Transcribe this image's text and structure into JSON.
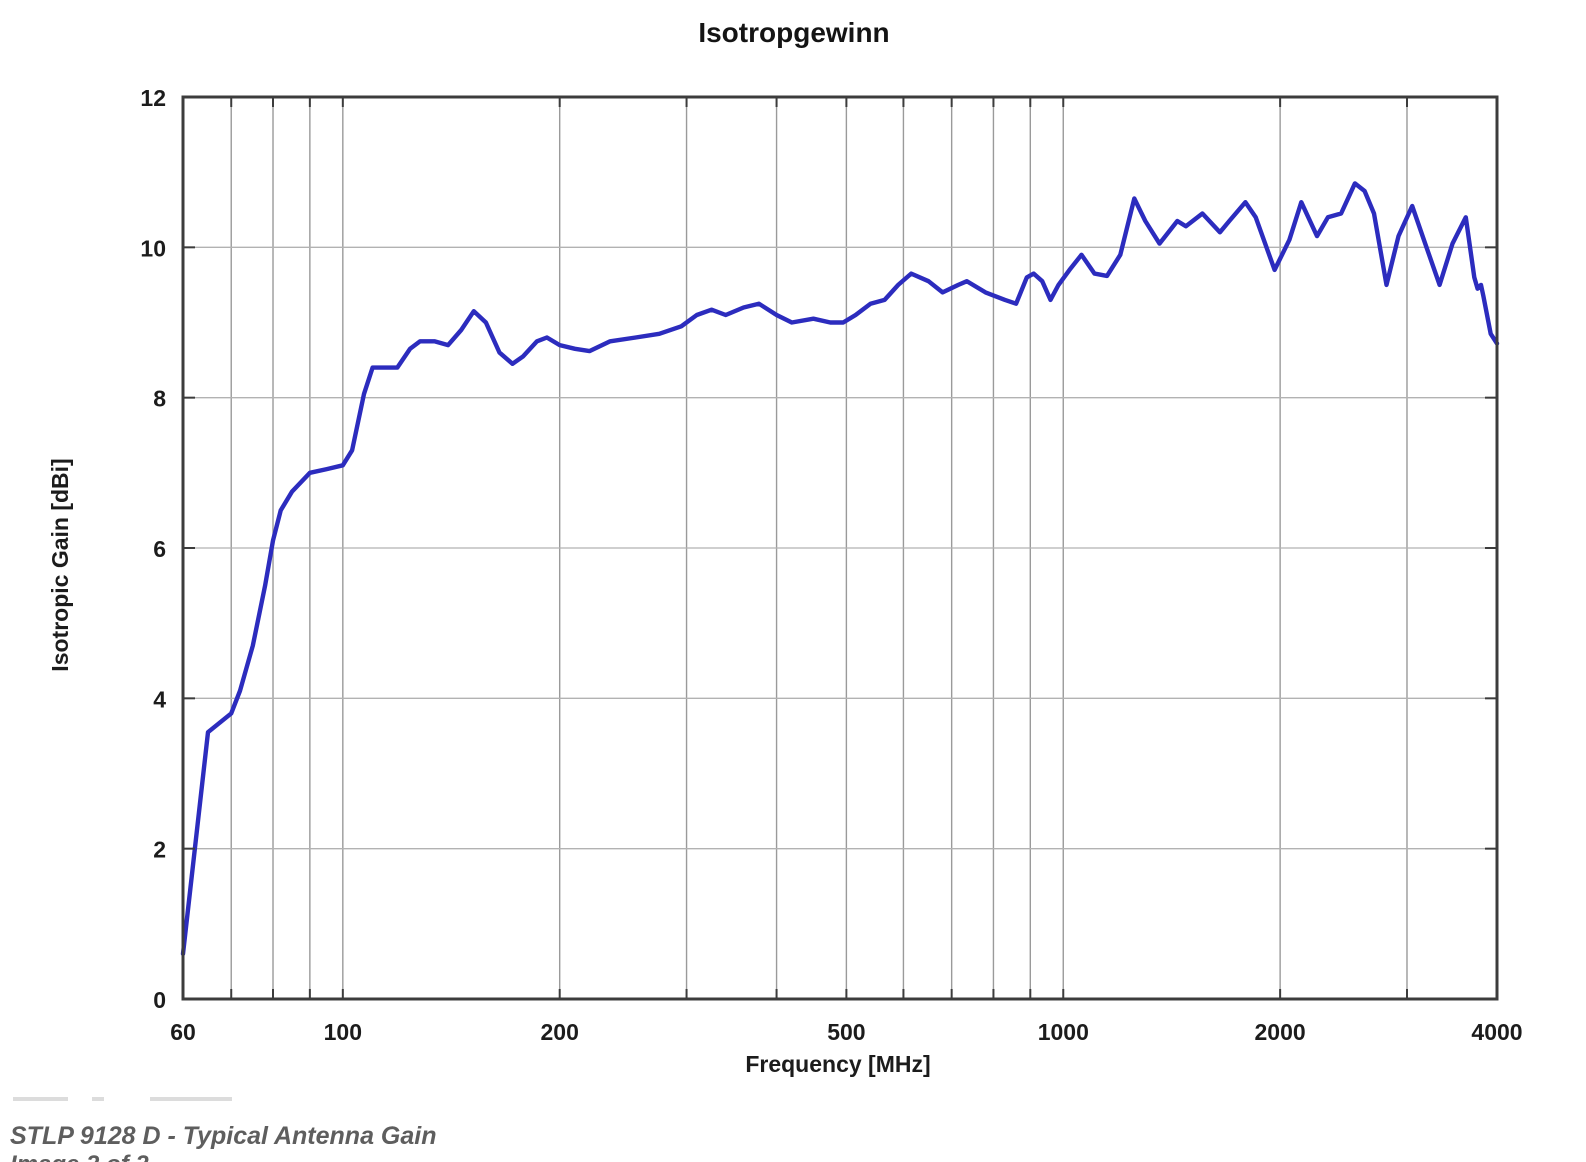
{
  "page": {
    "caption_line1": "STLP 9128 D - Typical Antenna Gain",
    "caption_line2": "Image 2 of 2"
  },
  "chart_data": {
    "type": "line",
    "title": "Isotropgewinn",
    "xlabel": "Frequency [MHz]",
    "ylabel": "Isotropic Gain [dBi]",
    "x_scale": "log",
    "xlim": [
      60,
      4000
    ],
    "ylim": [
      0,
      12
    ],
    "grid": true,
    "legend_position": "none",
    "x_tick_labels": [
      "60",
      "100",
      "200",
      "500",
      "1000",
      "2000",
      "4000"
    ],
    "x_tick_values": [
      60,
      100,
      200,
      500,
      1000,
      2000,
      4000
    ],
    "x_gridlines": [
      70,
      80,
      90,
      100,
      200,
      300,
      400,
      500,
      600,
      700,
      800,
      900,
      1000,
      2000,
      3000,
      4000
    ],
    "y_tick_labels": [
      "0",
      "2",
      "4",
      "6",
      "8",
      "10",
      "12"
    ],
    "y_tick_values": [
      0,
      2,
      4,
      6,
      8,
      10,
      12
    ],
    "y_gridlines": [
      2,
      4,
      6,
      8,
      10
    ],
    "line_color": "#2c2cbe",
    "series": [
      {
        "name": "Isotropic Gain",
        "points": [
          [
            60,
            0.6
          ],
          [
            65,
            3.55
          ],
          [
            70,
            3.8
          ],
          [
            72,
            4.1
          ],
          [
            75,
            4.7
          ],
          [
            78,
            5.5
          ],
          [
            80,
            6.1
          ],
          [
            82,
            6.5
          ],
          [
            85,
            6.75
          ],
          [
            90,
            7.0
          ],
          [
            95,
            7.05
          ],
          [
            100,
            7.1
          ],
          [
            103,
            7.3
          ],
          [
            107,
            8.05
          ],
          [
            110,
            8.4
          ],
          [
            119,
            8.4
          ],
          [
            124,
            8.65
          ],
          [
            128,
            8.75
          ],
          [
            134,
            8.75
          ],
          [
            140,
            8.7
          ],
          [
            146,
            8.9
          ],
          [
            152,
            9.15
          ],
          [
            158,
            9.0
          ],
          [
            165,
            8.6
          ],
          [
            172,
            8.45
          ],
          [
            178,
            8.55
          ],
          [
            186,
            8.75
          ],
          [
            192,
            8.8
          ],
          [
            200,
            8.7
          ],
          [
            210,
            8.65
          ],
          [
            220,
            8.62
          ],
          [
            235,
            8.75
          ],
          [
            255,
            8.8
          ],
          [
            275,
            8.85
          ],
          [
            295,
            8.95
          ],
          [
            310,
            9.1
          ],
          [
            325,
            9.17
          ],
          [
            340,
            9.1
          ],
          [
            360,
            9.2
          ],
          [
            378,
            9.25
          ],
          [
            400,
            9.1
          ],
          [
            420,
            9.0
          ],
          [
            450,
            9.05
          ],
          [
            475,
            9.0
          ],
          [
            495,
            9.0
          ],
          [
            515,
            9.1
          ],
          [
            540,
            9.25
          ],
          [
            565,
            9.3
          ],
          [
            590,
            9.5
          ],
          [
            615,
            9.65
          ],
          [
            650,
            9.55
          ],
          [
            680,
            9.4
          ],
          [
            715,
            9.5
          ],
          [
            735,
            9.55
          ],
          [
            780,
            9.4
          ],
          [
            830,
            9.3
          ],
          [
            860,
            9.25
          ],
          [
            890,
            9.6
          ],
          [
            910,
            9.65
          ],
          [
            935,
            9.55
          ],
          [
            960,
            9.3
          ],
          [
            985,
            9.5
          ],
          [
            1020,
            9.7
          ],
          [
            1060,
            9.9
          ],
          [
            1105,
            9.65
          ],
          [
            1150,
            9.62
          ],
          [
            1200,
            9.9
          ],
          [
            1255,
            10.65
          ],
          [
            1300,
            10.35
          ],
          [
            1360,
            10.05
          ],
          [
            1440,
            10.35
          ],
          [
            1480,
            10.28
          ],
          [
            1560,
            10.45
          ],
          [
            1650,
            10.2
          ],
          [
            1700,
            10.35
          ],
          [
            1790,
            10.6
          ],
          [
            1850,
            10.4
          ],
          [
            1965,
            9.7
          ],
          [
            2060,
            10.1
          ],
          [
            2140,
            10.6
          ],
          [
            2250,
            10.15
          ],
          [
            2330,
            10.4
          ],
          [
            2430,
            10.45
          ],
          [
            2540,
            10.85
          ],
          [
            2620,
            10.75
          ],
          [
            2700,
            10.45
          ],
          [
            2810,
            9.5
          ],
          [
            2920,
            10.15
          ],
          [
            3050,
            10.55
          ],
          [
            3180,
            10.05
          ],
          [
            3330,
            9.5
          ],
          [
            3470,
            10.05
          ],
          [
            3620,
            10.4
          ],
          [
            3720,
            9.6
          ],
          [
            3760,
            9.45
          ],
          [
            3800,
            9.5
          ],
          [
            3830,
            9.35
          ],
          [
            3920,
            8.85
          ],
          [
            4000,
            8.72
          ]
        ]
      }
    ]
  }
}
